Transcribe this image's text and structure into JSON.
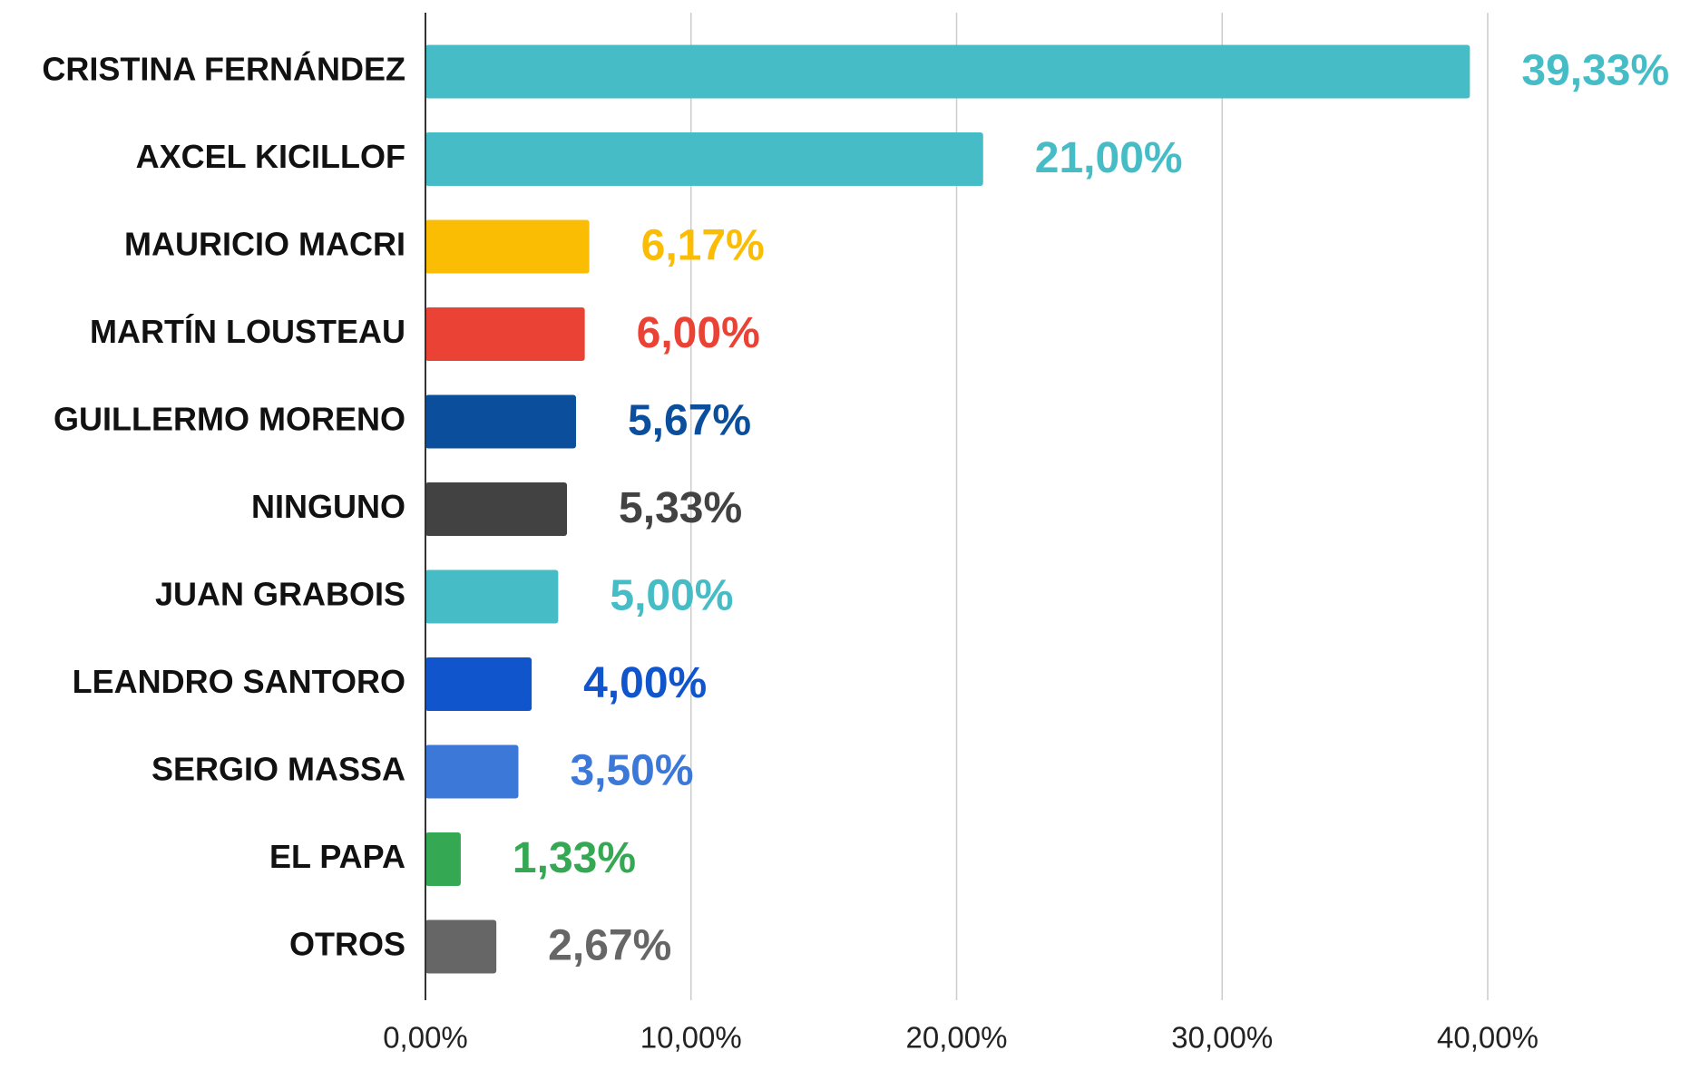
{
  "chart_data": {
    "type": "bar",
    "orientation": "horizontal",
    "categories": [
      "CRISTINA FERNÁNDEZ",
      "AXCEL KICILLOF",
      "MAURICIO MACRI",
      "MARTÍN LOUSTEAU",
      "GUILLERMO MORENO",
      "NINGUNO",
      "JUAN GRABOIS",
      "LEANDRO SANTORO",
      "SERGIO MASSA",
      "EL PAPA",
      "OTROS"
    ],
    "values": [
      39.33,
      21.0,
      6.17,
      6.0,
      5.67,
      5.33,
      5.0,
      4.0,
      3.5,
      1.33,
      2.67
    ],
    "value_labels": [
      "39,33%",
      "21,00%",
      "6,17%",
      "6,00%",
      "5,67%",
      "5,33%",
      "5,00%",
      "4,00%",
      "3,50%",
      "1,33%",
      "2,67%"
    ],
    "colors": [
      "#46bdc6",
      "#46bdc6",
      "#fbbc04",
      "#ea4335",
      "#0b4f9c",
      "#424242",
      "#46bdc6",
      "#1155cc",
      "#3c78d8",
      "#34a853",
      "#666666"
    ],
    "xlim": [
      0,
      40
    ],
    "xticks": [
      {
        "value": 0,
        "label": "0,00%"
      },
      {
        "value": 10,
        "label": "10,00%"
      },
      {
        "value": 20,
        "label": "20,00%"
      },
      {
        "value": 30,
        "label": "30,00%"
      },
      {
        "value": 40,
        "label": "40,00%"
      }
    ],
    "grid": true
  }
}
